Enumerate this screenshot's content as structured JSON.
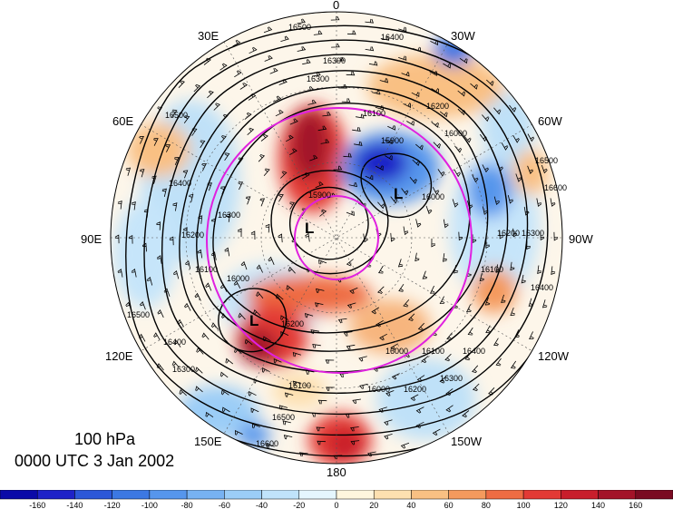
{
  "title": {
    "level": "100 hPa",
    "time": "0000 UTC 3 Jan 2002"
  },
  "longitude_labels": {
    "lon_0": "0",
    "lon_30w": "30W",
    "lon_60w": "60W",
    "lon_90w": "90W",
    "lon_120w": "120W",
    "lon_150w": "150W",
    "lon_180": "180",
    "lon_150e": "150E",
    "lon_120e": "120E",
    "lon_90e": "90E",
    "lon_60e": "60E",
    "lon_30e": "30E"
  },
  "pressure_centers": [
    "L",
    "L",
    "L"
  ],
  "contour_labels": [
    "16500",
    "16400",
    "16300",
    "16300",
    "16200",
    "16100",
    "16000",
    "15900",
    "16500",
    "16400",
    "16300",
    "16200",
    "16100",
    "16000",
    "15900",
    "16000",
    "16100",
    "16200",
    "16300",
    "16400",
    "16500",
    "16600",
    "16500",
    "16400",
    "16300",
    "16200",
    "16100",
    "16000",
    "16000",
    "16100",
    "16200",
    "16300",
    "16400",
    "16500",
    "16600"
  ],
  "colorbar": {
    "tick_labels": [
      "-160",
      "-140",
      "-120",
      "-100",
      "-80",
      "-60",
      "-40",
      "-20",
      "0",
      "20",
      "40",
      "60",
      "80",
      "100",
      "120",
      "140",
      "160"
    ],
    "colors": [
      "#1e22c8",
      "#2c57d8",
      "#3c78e3",
      "#5696ec",
      "#77b2f2",
      "#9bcdf7",
      "#c0e3fb",
      "#e5f6fe",
      "#fff6de",
      "#fde0b0",
      "#f9c083",
      "#f49a5d",
      "#ee6c43",
      "#e33a35",
      "#c81e2c",
      "#a31329",
      "#7a0b22"
    ]
  },
  "colors": {
    "circle": "#e020e0",
    "contour": "#000000"
  }
}
